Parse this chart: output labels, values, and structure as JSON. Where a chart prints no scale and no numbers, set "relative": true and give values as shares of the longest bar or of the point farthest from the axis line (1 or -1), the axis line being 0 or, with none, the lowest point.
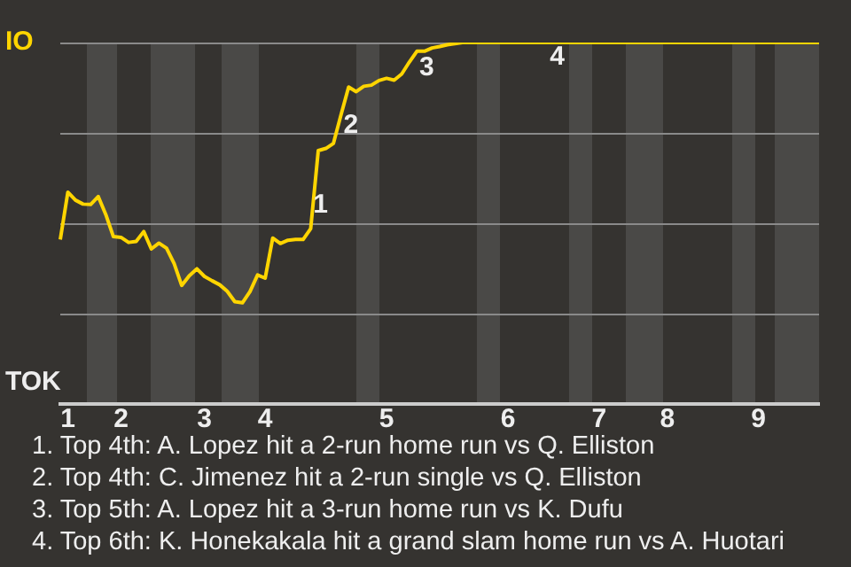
{
  "chart_data": {
    "type": "line",
    "relative": true,
    "categories": [
      null,
      "1",
      null,
      null,
      null,
      null,
      null,
      null,
      "2",
      null,
      null,
      null,
      null,
      null,
      null,
      null,
      null,
      null,
      null,
      "3",
      null,
      null,
      null,
      null,
      null,
      null,
      null,
      "4",
      null,
      null,
      null,
      null,
      null,
      null,
      null,
      null,
      null,
      null,
      null,
      null,
      null,
      null,
      null,
      "5",
      null,
      null,
      null,
      null,
      null,
      null,
      null,
      null,
      null,
      null,
      null,
      null,
      null,
      null,
      null,
      "6",
      null,
      null,
      null,
      null,
      null,
      null,
      null,
      null,
      null,
      null,
      null,
      "7",
      null,
      null,
      null,
      null,
      null,
      null,
      null,
      null,
      "8",
      null,
      null,
      null,
      null,
      null,
      null,
      null,
      null,
      null,
      null,
      null,
      "9",
      null,
      null,
      null,
      null,
      null,
      null,
      null,
      null
    ],
    "series": [
      {
        "color": "#ffd500",
        "values": [
          0.455,
          0.586,
          0.564,
          0.553,
          0.552,
          0.574,
          0.524,
          0.463,
          0.461,
          0.447,
          0.45,
          0.477,
          0.429,
          0.445,
          0.431,
          0.389,
          0.328,
          0.355,
          0.374,
          0.353,
          0.341,
          0.33,
          0.312,
          0.283,
          0.28,
          0.311,
          0.357,
          0.348,
          0.459,
          0.444,
          0.453,
          0.455,
          0.455,
          0.485,
          0.701,
          0.707,
          0.721,
          0.8,
          0.877,
          0.864,
          0.879,
          0.882,
          0.895,
          0.901,
          0.896,
          0.913,
          0.946,
          0.976,
          0.976,
          0.985,
          0.989,
          0.994,
          0.997,
          1,
          1,
          1,
          1,
          1,
          1,
          1,
          1,
          1,
          1,
          1,
          1,
          1,
          1,
          1,
          1,
          1,
          1,
          1,
          1,
          1,
          1,
          1,
          1,
          1,
          1,
          1,
          1,
          1,
          1,
          1,
          1,
          1,
          1,
          1,
          1,
          1,
          1,
          1,
          1,
          1,
          1,
          1,
          1,
          1,
          1,
          1,
          1
        ]
      }
    ],
    "grid": "y",
    "annotations": [
      "IO",
      "TOK",
      "1",
      "2",
      "3",
      "4",
      "1. Top 4th: A. Lopez hit a 2-run home run vs Q. Elliston",
      "2. Top 4th: C. Jimenez hit a 2-run single vs Q. Elliston",
      "3. Top 5th: A. Lopez hit a 3-run home run vs K. Dufu",
      "4. Top 6th: K. Honekakala hit a grand slam home run vs A. Huotari"
    ]
  }
}
